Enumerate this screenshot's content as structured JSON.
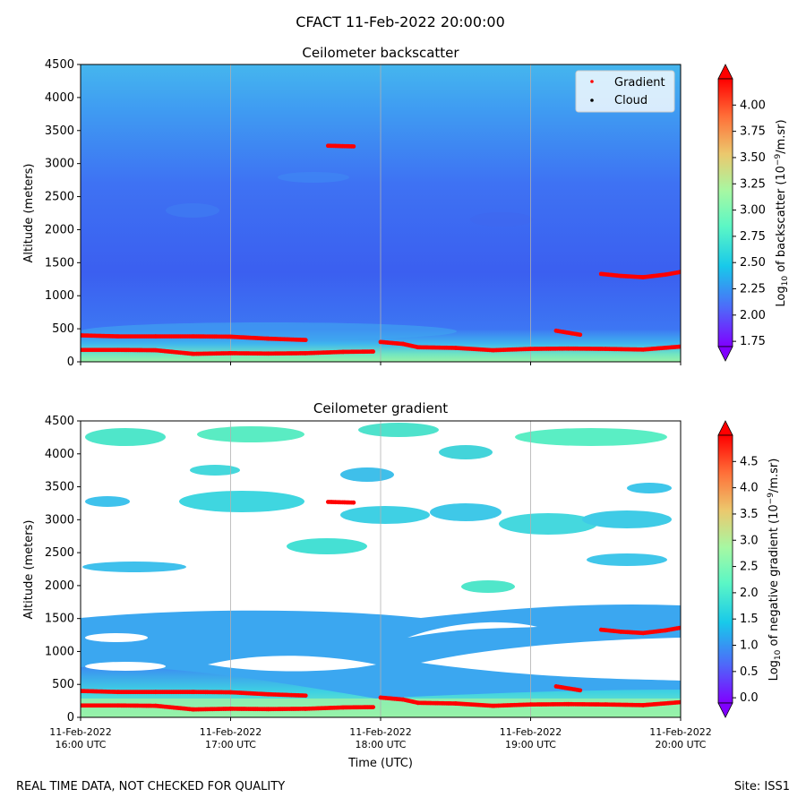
{
  "suptitle": "CFACT 11-Feb-2022 20:00:00",
  "footer_left": "REAL TIME DATA, NOT CHECKED FOR QUALITY",
  "footer_right": "Site: ISS1",
  "chart_data": [
    {
      "type": "heatmap",
      "title": "Ceilometer backscatter",
      "ylabel": "Altitude (meters)",
      "xlabel": "",
      "xlim": [
        "11-Feb-2022 16:00 UTC",
        "11-Feb-2022 20:00 UTC"
      ],
      "ylim": [
        0,
        4500
      ],
      "yticks": [
        "0",
        "500",
        "1000",
        "1500",
        "2000",
        "2500",
        "3000",
        "3500",
        "4000",
        "4500"
      ],
      "xtick_labels": [],
      "grid": "vertical",
      "legend": {
        "placement": "top-right",
        "entries": [
          {
            "label": "Gradient",
            "color": "#ff0000"
          },
          {
            "label": "Cloud",
            "color": "#000000"
          }
        ]
      },
      "colorbar": {
        "label_prefix": "Log",
        "label_sub": "10",
        "label_mid": " of backscatter (10",
        "label_sup": "−9",
        "label_suffix": "/m.sr)",
        "ticks": [
          "1.75",
          "2.00",
          "2.25",
          "2.50",
          "2.75",
          "3.00",
          "3.25",
          "3.50",
          "3.75",
          "4.00"
        ],
        "range": [
          1.7,
          4.25
        ],
        "colormap": "rainbow"
      },
      "gradient_points": [
        [
          0.0,
          400
        ],
        [
          0.25,
          385
        ],
        [
          0.5,
          385
        ],
        [
          0.75,
          385
        ],
        [
          1.0,
          380
        ],
        [
          1.25,
          350
        ],
        [
          1.5,
          330
        ],
        [
          0.0,
          180
        ],
        [
          0.25,
          180
        ],
        [
          0.5,
          175
        ],
        [
          0.75,
          120
        ],
        [
          1.0,
          130
        ],
        [
          1.25,
          125
        ],
        [
          1.5,
          130
        ],
        [
          1.75,
          150
        ],
        [
          1.95,
          155
        ],
        [
          1.65,
          3270
        ],
        [
          1.82,
          3260
        ],
        [
          2.0,
          300
        ],
        [
          2.15,
          270
        ],
        [
          2.25,
          220
        ],
        [
          2.5,
          210
        ],
        [
          2.75,
          175
        ],
        [
          3.0,
          195
        ],
        [
          3.25,
          200
        ],
        [
          3.5,
          195
        ],
        [
          3.75,
          185
        ],
        [
          4.0,
          230
        ],
        [
          3.17,
          470
        ],
        [
          3.33,
          410
        ],
        [
          3.47,
          1330
        ],
        [
          3.6,
          1300
        ],
        [
          3.75,
          1280
        ],
        [
          3.9,
          1320
        ],
        [
          4.0,
          1360
        ]
      ]
    },
    {
      "type": "heatmap",
      "title": "Ceilometer gradient",
      "ylabel": "Altitude (meters)",
      "xlabel": "Time (UTC)",
      "xlim": [
        "11-Feb-2022 16:00 UTC",
        "11-Feb-2022 20:00 UTC"
      ],
      "ylim": [
        0,
        4500
      ],
      "yticks": [
        "0",
        "500",
        "1000",
        "1500",
        "2000",
        "2500",
        "3000",
        "3500",
        "4000",
        "4500"
      ],
      "xtick_labels": [
        {
          "hours": 0,
          "line1": "11-Feb-2022",
          "line2": "16:00 UTC"
        },
        {
          "hours": 1,
          "line1": "11-Feb-2022",
          "line2": "17:00 UTC"
        },
        {
          "hours": 2,
          "line1": "11-Feb-2022",
          "line2": "18:00 UTC"
        },
        {
          "hours": 3,
          "line1": "11-Feb-2022",
          "line2": "19:00 UTC"
        },
        {
          "hours": 4,
          "line1": "11-Feb-2022",
          "line2": "20:00 UTC"
        }
      ],
      "grid": "vertical",
      "colorbar": {
        "label_prefix": "Log",
        "label_sub": "10",
        "label_mid": " of negative gradient (10",
        "label_sup": "−9",
        "label_suffix": "/m.sr)",
        "ticks": [
          "0.0",
          "0.5",
          "1.0",
          "1.5",
          "2.0",
          "2.5",
          "3.0",
          "3.5",
          "4.0",
          "4.5"
        ],
        "range": [
          -0.1,
          5.0
        ],
        "colormap": "rainbow"
      }
    }
  ]
}
